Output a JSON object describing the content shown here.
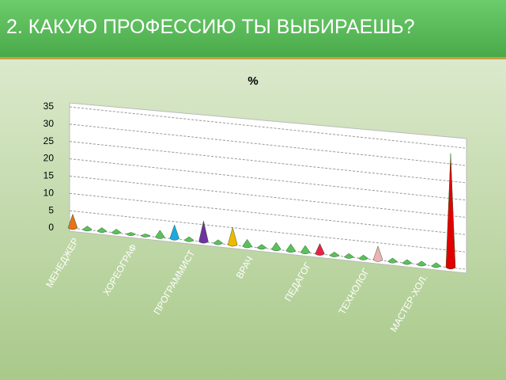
{
  "header": {
    "title": "2. КАКУЮ ПРОФЕССИЮ ТЫ ВЫБИРАЕШЬ?"
  },
  "chart_data": {
    "type": "bar",
    "title": "%",
    "categories": [
      "МЕНЕДЖЕР",
      null,
      null,
      null,
      "ХОРЕОГРАФ",
      null,
      null,
      null,
      "ПРОГРАММИСТ",
      null,
      null,
      null,
      "ВРАЧ",
      null,
      null,
      null,
      "ПЕДАГОГ",
      null,
      null,
      null,
      "ТЕХНОЛОГ",
      null,
      null,
      null,
      "МАСТЕР-ХОЛ.",
      null,
      null
    ],
    "values": [
      4,
      1,
      1,
      1,
      0.5,
      0.5,
      2,
      4,
      1,
      6,
      1,
      5,
      2,
      1,
      2,
      2,
      2,
      3,
      1,
      1,
      1,
      4,
      1,
      1,
      1,
      1,
      33
    ],
    "colors": [
      "#e8701a",
      "#5cbf5c",
      "#5cbf5c",
      "#5cbf5c",
      "#5cbf5c",
      "#5cbf5c",
      "#5cbf5c",
      "#1ea8e0",
      "#5cbf5c",
      "#7030a0",
      "#5cbf5c",
      "#f0b800",
      "#5cbf5c",
      "#5cbf5c",
      "#5cbf5c",
      "#5cbf5c",
      "#5cbf5c",
      "#e8204a",
      "#5cbf5c",
      "#5cbf5c",
      "#5cbf5c",
      "#f0b0b8",
      "#5cbf5c",
      "#5cbf5c",
      "#5cbf5c",
      "#5cbf5c",
      "#e00000"
    ],
    "ylim": [
      0,
      35
    ],
    "yticks": [
      0,
      5,
      10,
      15,
      20,
      25,
      30,
      35
    ],
    "grid": true
  }
}
